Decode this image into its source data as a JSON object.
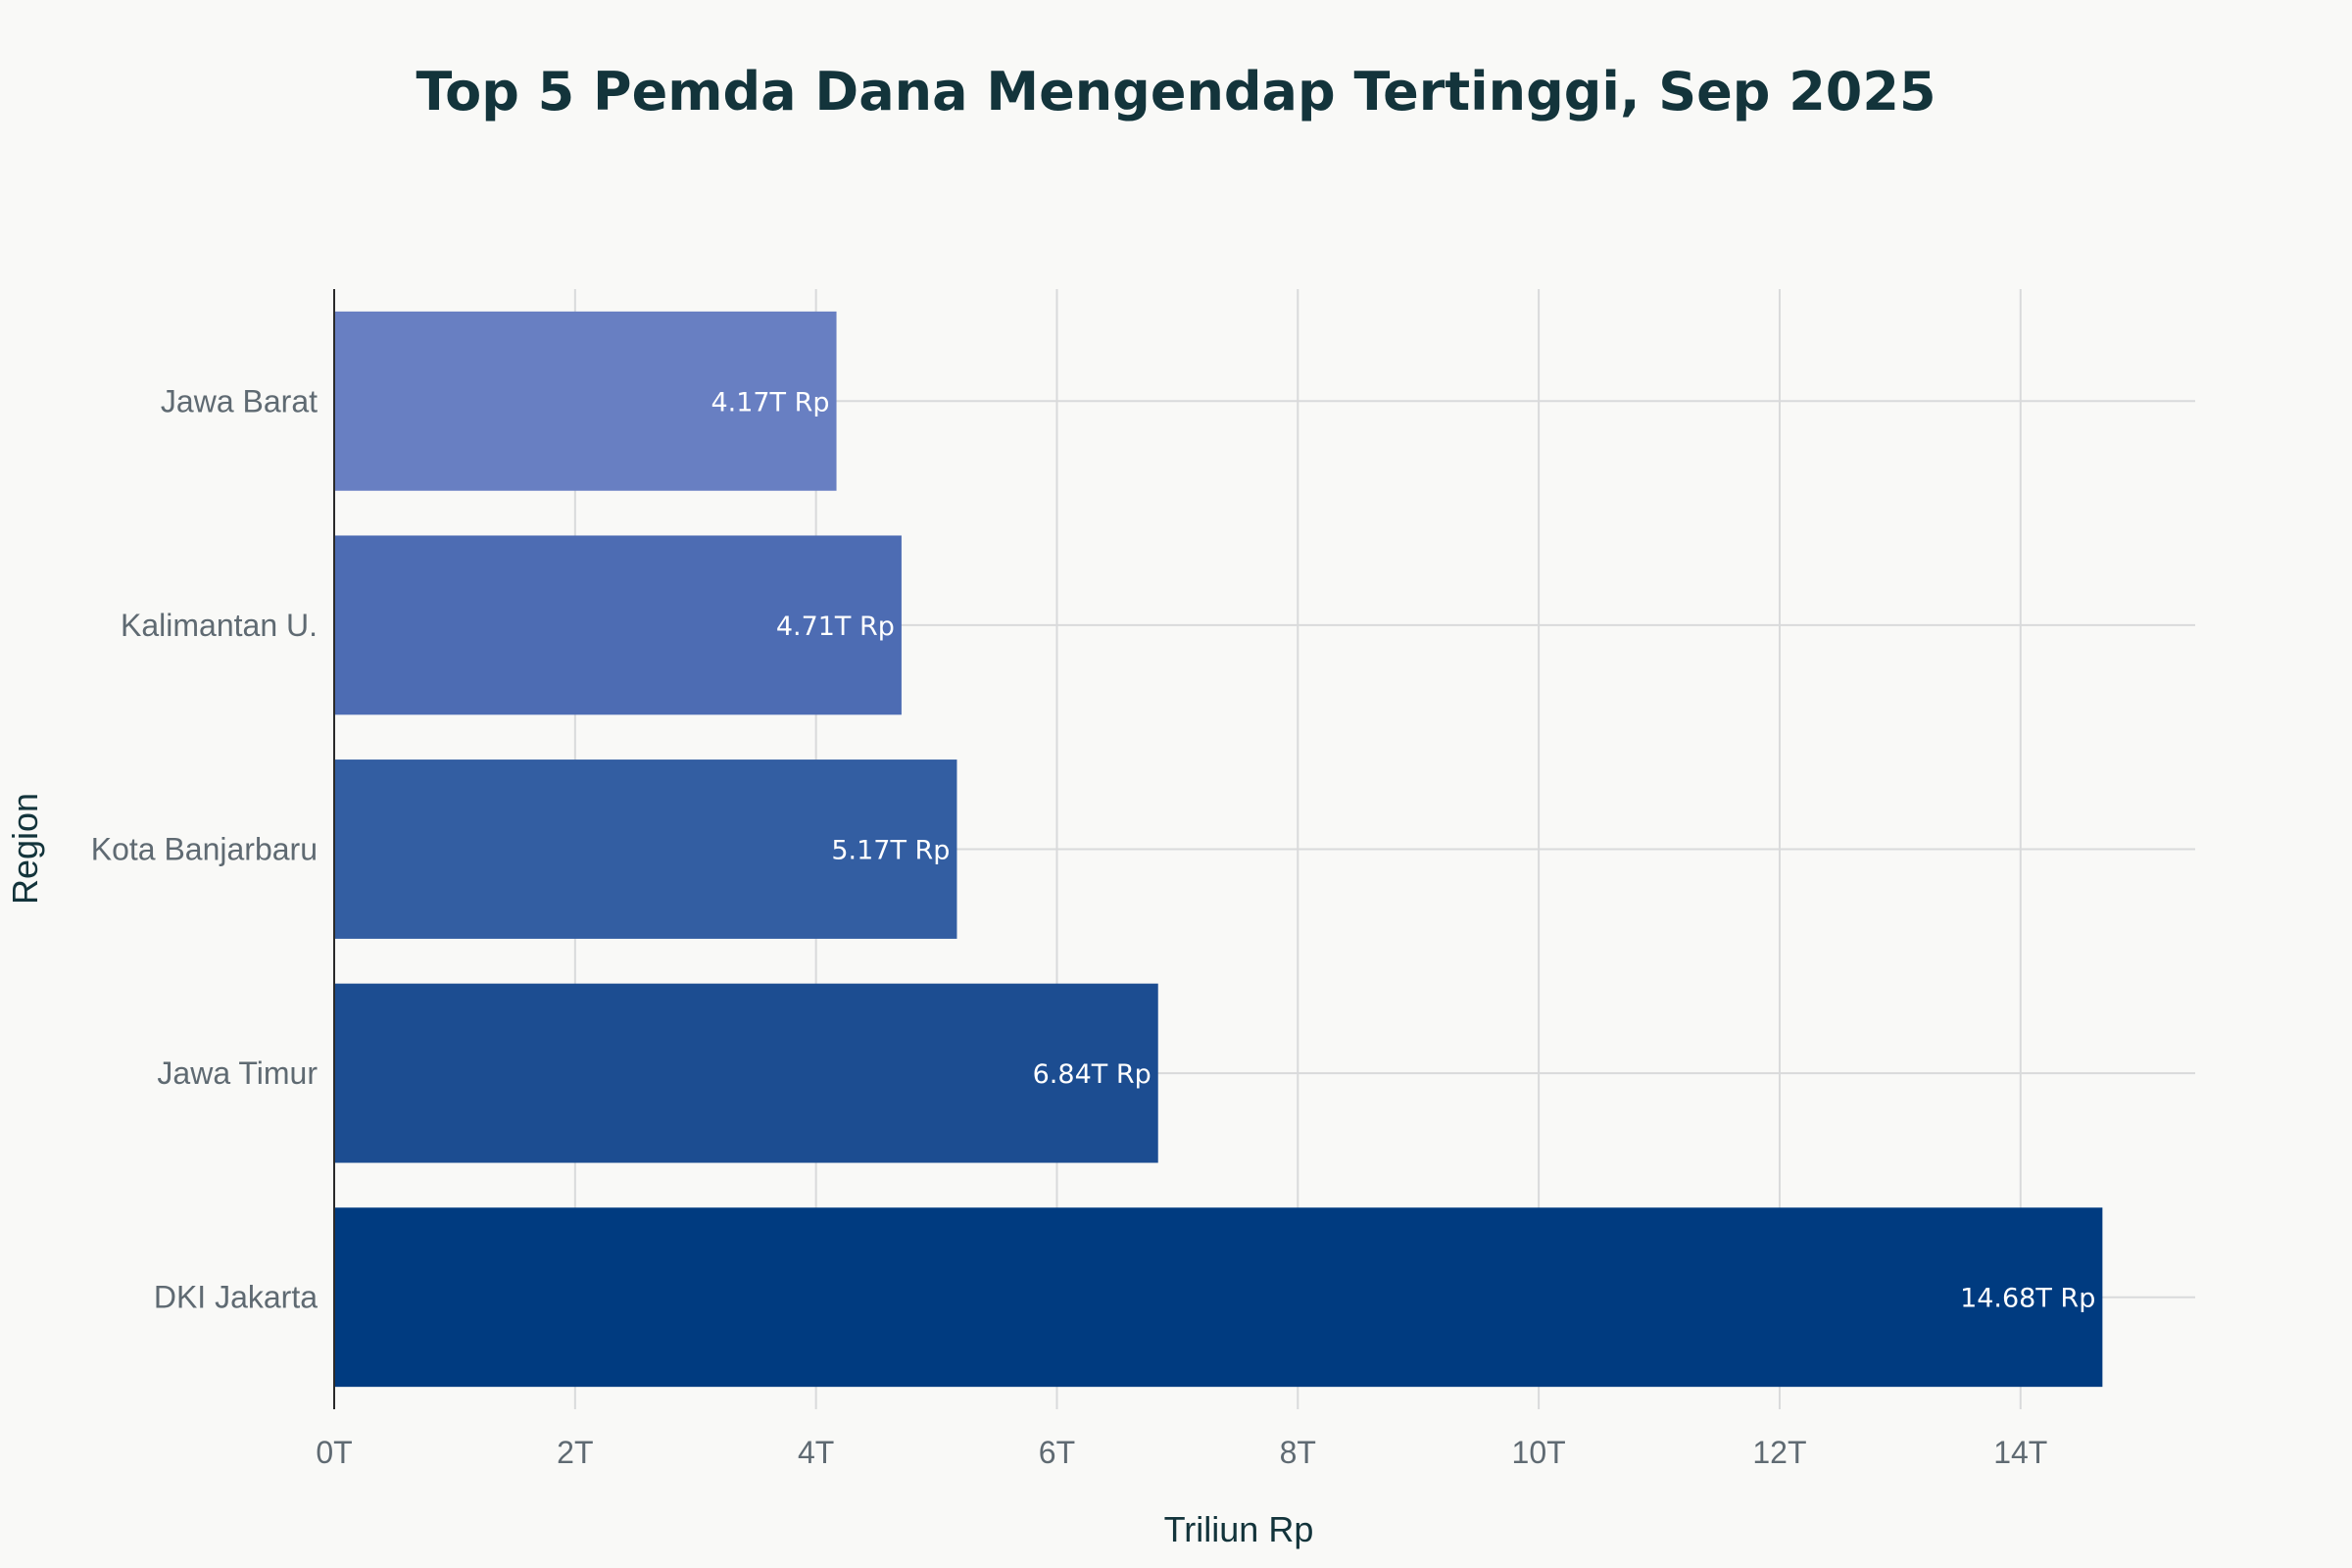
{
  "chart_data": {
    "type": "bar",
    "orientation": "horizontal",
    "title": "Top 5 Pemda Dana Mengendap Tertinggi, Sep 2025",
    "xlabel": "Triliun Rp",
    "ylabel": "Region",
    "categories": [
      "DKI Jakarta",
      "Jawa Timur",
      "Kota Banjarbaru",
      "Kalimantan U.",
      "Jawa Barat"
    ],
    "values": [
      14.68,
      6.84,
      5.17,
      4.71,
      4.17
    ],
    "data_labels": [
      "14.68T Rp",
      "6.84T Rp",
      "5.17T Rp",
      "4.71T Rp",
      "4.17T Rp"
    ],
    "bar_colors": [
      "#003b80",
      "#1c4d91",
      "#335ea2",
      "#4d6cb3",
      "#687fc2"
    ],
    "xlim": [
      0,
      15.45
    ],
    "x_ticks": [
      0,
      2,
      4,
      6,
      8,
      10,
      12,
      14
    ],
    "x_tick_labels": [
      "0T",
      "2T",
      "4T",
      "6T",
      "8T",
      "10T",
      "12T",
      "14T"
    ],
    "grid": true,
    "legend": false
  }
}
